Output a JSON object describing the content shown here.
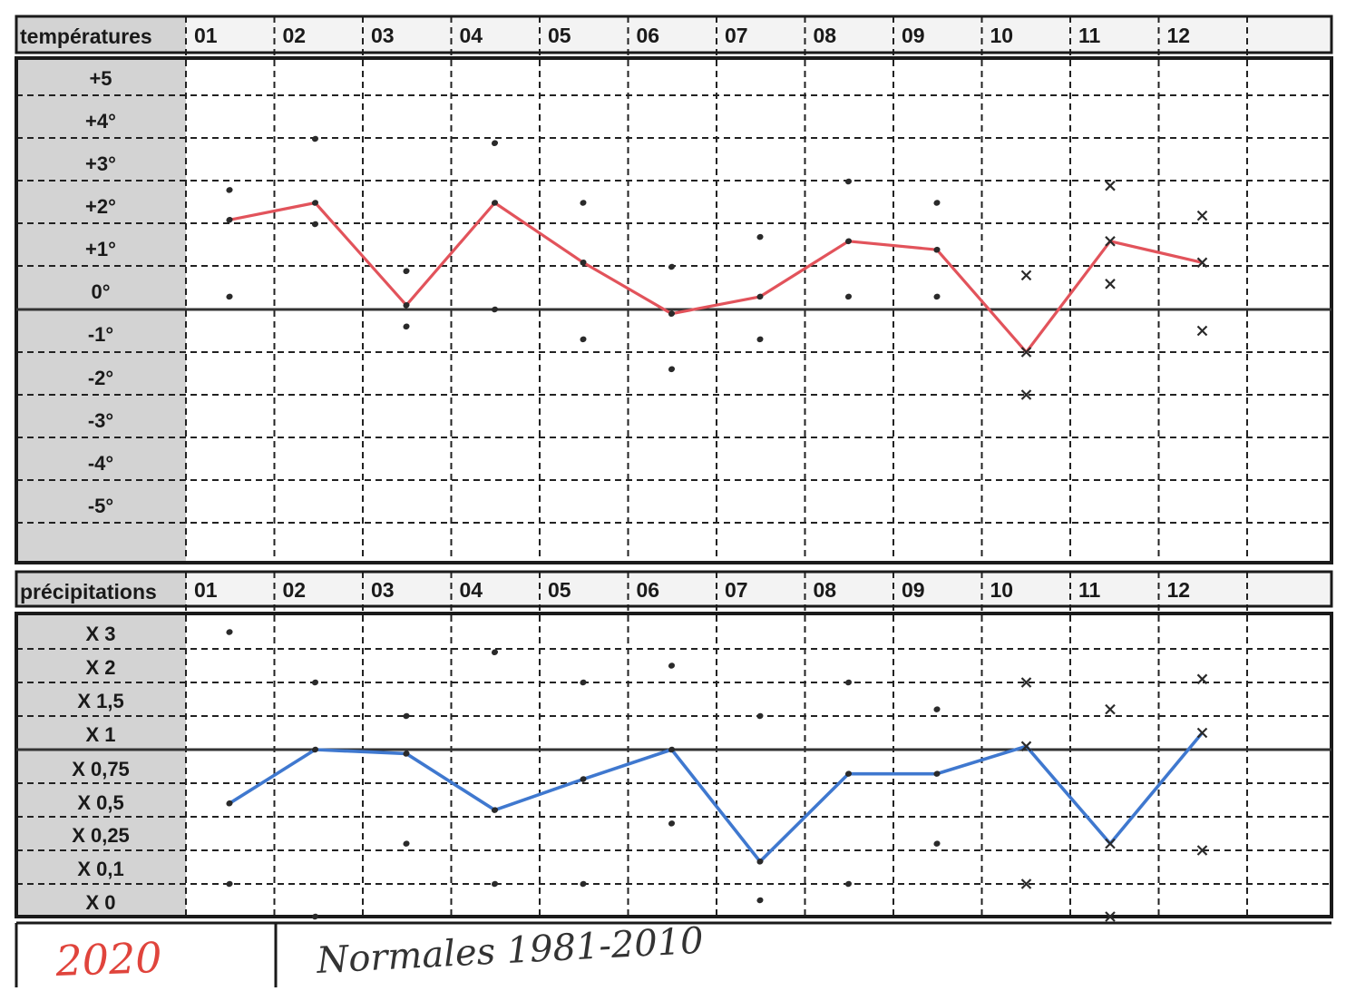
{
  "colors": {
    "temperature_line": "#e2535b",
    "precipitation_line": "#3f78cf",
    "label_background": "#d3d3d3",
    "ink": "#1a1a1a",
    "year_ink": "#e0443c"
  },
  "year": "2020",
  "note": "Normales 1981-2010",
  "chart_data": [
    {
      "type": "line",
      "title": "températures",
      "categories": [
        "01",
        "02",
        "03",
        "04",
        "05",
        "06",
        "07",
        "08",
        "09",
        "10",
        "11",
        "12"
      ],
      "y_tick_labels": [
        "+5",
        "+4°",
        "+3°",
        "+2°",
        "+1°",
        "0°",
        "-1°",
        "-2°",
        "-3°",
        "-4°",
        "-5°"
      ],
      "ylim": [
        -6,
        6
      ],
      "grid": true,
      "series": [
        {
          "values": [
            2.1,
            2.5,
            0.1,
            2.5,
            1.1,
            -0.1,
            0.3,
            1.6,
            1.4,
            -1.0,
            1.6,
            1.1
          ]
        }
      ],
      "scatter_points": [
        {
          "x": 1,
          "y": 2.8
        },
        {
          "x": 1,
          "y": 0.3
        },
        {
          "x": 2,
          "y": 4.0
        },
        {
          "x": 2,
          "y": 2.0
        },
        {
          "x": 3,
          "y": 0.9
        },
        {
          "x": 3,
          "y": -0.4
        },
        {
          "x": 4,
          "y": 3.9
        },
        {
          "x": 4,
          "y": 0.0
        },
        {
          "x": 5,
          "y": 2.5
        },
        {
          "x": 5,
          "y": -0.7
        },
        {
          "x": 6,
          "y": 1.0
        },
        {
          "x": 6,
          "y": -1.4
        },
        {
          "x": 7,
          "y": 1.7
        },
        {
          "x": 7,
          "y": -0.7
        },
        {
          "x": 8,
          "y": 3.0
        },
        {
          "x": 8,
          "y": 0.3
        },
        {
          "x": 9,
          "y": 2.5
        },
        {
          "x": 9,
          "y": 0.3
        },
        {
          "x": 10,
          "y": 0.8
        },
        {
          "x": 10,
          "y": -2.0
        },
        {
          "x": 11,
          "y": 2.9
        },
        {
          "x": 11,
          "y": 0.6
        },
        {
          "x": 12,
          "y": 2.2
        },
        {
          "x": 12,
          "y": -0.5
        }
      ]
    },
    {
      "type": "line",
      "title": "précipitations",
      "categories": [
        "01",
        "02",
        "03",
        "04",
        "05",
        "06",
        "07",
        "08",
        "09",
        "10",
        "11",
        "12"
      ],
      "y_tick_labels": [
        "X 3",
        "X 2",
        "X 1,5",
        "X 1",
        "X 0,75",
        "X 0,5",
        "X 0,25",
        "X 0,1",
        "X 0"
      ],
      "grid": true,
      "series": [
        {
          "values": [
            0.6,
            1.0,
            0.97,
            0.55,
            0.78,
            1.0,
            0.2,
            0.82,
            0.82,
            1.05,
            0.3,
            1.25
          ]
        }
      ],
      "scatter_points": [
        {
          "x": 1,
          "y": 3.5
        },
        {
          "x": 1,
          "y": 0.1
        },
        {
          "x": 2,
          "y": 2.0
        },
        {
          "x": 2,
          "y": 0.0
        },
        {
          "x": 3,
          "y": 1.5
        },
        {
          "x": 3,
          "y": 0.3
        },
        {
          "x": 4,
          "y": 2.9
        },
        {
          "x": 4,
          "y": 0.1
        },
        {
          "x": 5,
          "y": 2.0
        },
        {
          "x": 5,
          "y": 0.1
        },
        {
          "x": 6,
          "y": 2.5
        },
        {
          "x": 6,
          "y": 0.45
        },
        {
          "x": 7,
          "y": 1.5
        },
        {
          "x": 7,
          "y": 0.05
        },
        {
          "x": 8,
          "y": 2.0
        },
        {
          "x": 8,
          "y": 0.1
        },
        {
          "x": 9,
          "y": 1.6
        },
        {
          "x": 9,
          "y": 0.3
        },
        {
          "x": 10,
          "y": 2.0
        },
        {
          "x": 10,
          "y": 0.1
        },
        {
          "x": 11,
          "y": 1.6
        },
        {
          "x": 11,
          "y": 0.0
        },
        {
          "x": 12,
          "y": 2.1
        },
        {
          "x": 12,
          "y": 0.25
        }
      ]
    }
  ]
}
